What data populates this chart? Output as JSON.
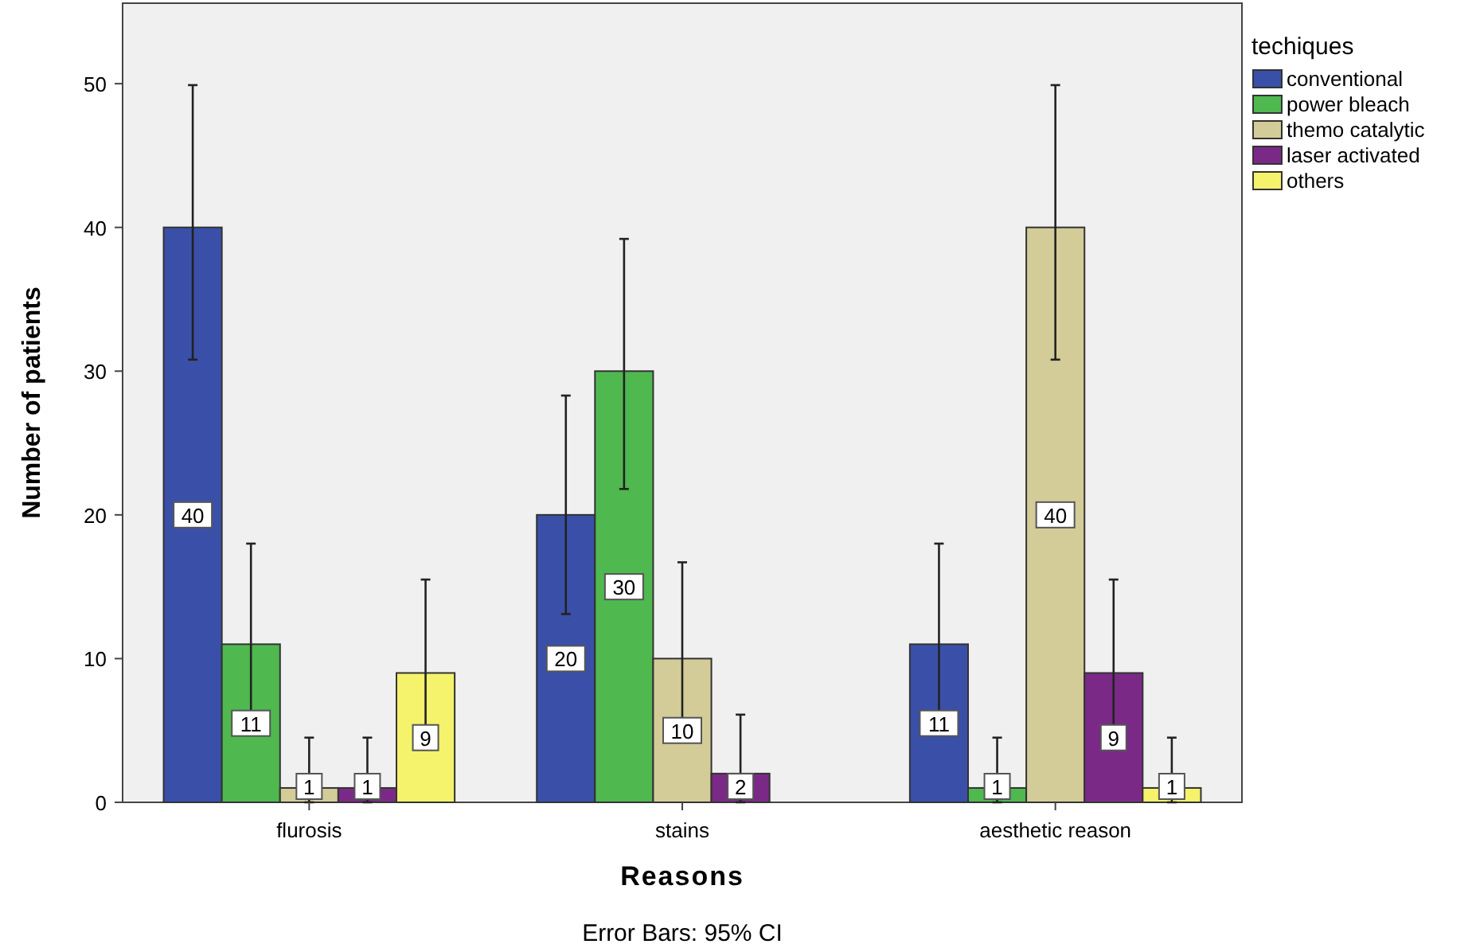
{
  "chart_data": {
    "type": "bar",
    "xlabel": "Reasons",
    "ylabel": "Number of patients",
    "legend_title": "techiques",
    "legend": "top right",
    "categories": [
      "flurosis",
      "stains",
      "aesthetic reason"
    ],
    "ylim": [
      0,
      55.6
    ],
    "yticks": [
      0,
      10,
      20,
      30,
      40,
      50
    ],
    "data_labels": true,
    "annotations": [
      "Error Bars: 95% CI"
    ],
    "series": [
      {
        "name": "conventional",
        "color": "#3a50a8",
        "values": [
          40,
          20,
          11
        ],
        "errors": [
          [
            30.8,
            49.9
          ],
          [
            13.1,
            28.3
          ],
          [
            6,
            18
          ]
        ]
      },
      {
        "name": "power bleach",
        "color": "#4fb84f",
        "values": [
          11,
          30,
          1
        ],
        "errors": [
          [
            6.1,
            18
          ],
          [
            21.8,
            39.2
          ],
          [
            0,
            4.5
          ]
        ]
      },
      {
        "name": "themo catalytic",
        "color": "#d3cc98",
        "values": [
          1,
          10,
          40
        ],
        "errors": [
          [
            0,
            4.5
          ],
          [
            4.6,
            16.7
          ],
          [
            30.8,
            49.9
          ]
        ]
      },
      {
        "name": "laser activated",
        "color": "#7a2a86",
        "values": [
          1,
          2,
          9
        ],
        "errors": [
          [
            0,
            4.5
          ],
          [
            0,
            6.1
          ],
          [
            4.2,
            15.5
          ]
        ]
      },
      {
        "name": "others",
        "color": "#f5f26c",
        "values": [
          9,
          null,
          1
        ],
        "errors": [
          [
            4.2,
            15.5
          ],
          null,
          [
            0,
            4.5
          ]
        ]
      }
    ]
  }
}
